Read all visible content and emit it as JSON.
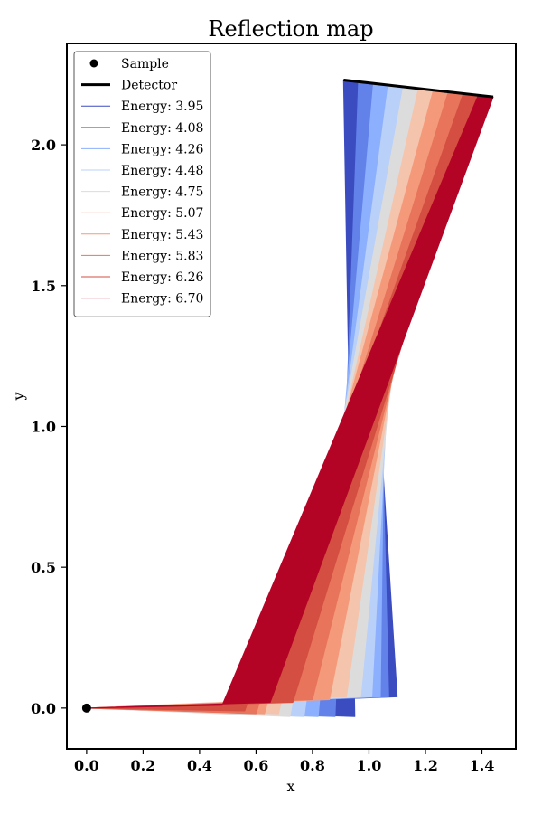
{
  "chart_data": {
    "type": "line",
    "title": "Reflection map",
    "xlabel": "x",
    "ylabel": "y",
    "xlim": [
      -0.07,
      1.52
    ],
    "ylim": [
      -0.145,
      2.36
    ],
    "xticks": [
      "0.0",
      "0.2",
      "0.4",
      "0.6",
      "0.8",
      "1.0",
      "1.2",
      "1.4"
    ],
    "yticks": [
      "0.0",
      "0.5",
      "1.0",
      "1.5",
      "2.0"
    ],
    "grid": false,
    "legend": "top-left",
    "sample": {
      "name": "Sample",
      "x": 0.0,
      "y": 0.0
    },
    "detector": {
      "name": "Detector",
      "x": [
        0.91,
        1.44
      ],
      "y": [
        2.23,
        2.17
      ]
    },
    "series": [
      {
        "name": "Energy: 3.95",
        "color": "#3b4cc0",
        "mirror": [
          [
            0.95,
            -0.03
          ],
          [
            1.1,
            0.04
          ]
        ]
      },
      {
        "name": "Energy: 4.08",
        "color": "#6282ea",
        "mirror": [
          [
            0.88,
            -0.03
          ],
          [
            1.07,
            0.04
          ]
        ]
      },
      {
        "name": "Energy: 4.26",
        "color": "#8db0fe",
        "mirror": [
          [
            0.82,
            -0.03
          ],
          [
            1.04,
            0.04
          ]
        ]
      },
      {
        "name": "Energy: 4.48",
        "color": "#b9d0f9",
        "mirror": [
          [
            0.77,
            -0.03
          ],
          [
            1.01,
            0.04
          ]
        ]
      },
      {
        "name": "Energy: 4.75",
        "color": "#dddcdc",
        "mirror": [
          [
            0.72,
            -0.03
          ],
          [
            0.97,
            0.04
          ]
        ]
      },
      {
        "name": "Energy: 5.07",
        "color": "#f5c4ac",
        "mirror": [
          [
            0.68,
            -0.02
          ],
          [
            0.92,
            0.04
          ]
        ]
      },
      {
        "name": "Energy: 5.43",
        "color": "#f49a7b",
        "mirror": [
          [
            0.63,
            -0.02
          ],
          [
            0.86,
            0.03
          ]
        ]
      },
      {
        "name": "Energy: 5.83",
        "color": "#e7745b",
        "mirror": [
          [
            0.6,
            -0.02
          ],
          [
            0.8,
            0.03
          ]
        ]
      },
      {
        "name": "Energy: 6.26",
        "color": "#d44e41",
        "mirror": [
          [
            0.56,
            -0.01
          ],
          [
            0.73,
            0.02
          ]
        ]
      },
      {
        "name": "Energy: 6.70",
        "color": "#b40426",
        "mirror": [
          [
            0.48,
            0.01
          ],
          [
            0.65,
            0.02
          ]
        ]
      }
    ],
    "legend_ring_color": "#5e2a84"
  }
}
